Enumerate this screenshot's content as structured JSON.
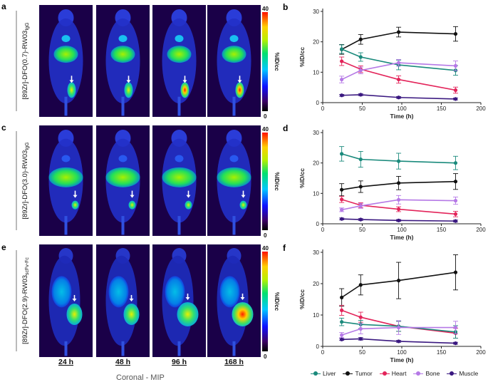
{
  "panels": {
    "a": "a",
    "b": "b",
    "c": "c",
    "d": "d",
    "e": "e",
    "f": "f"
  },
  "rows": [
    {
      "label_main": "[89Zr]-DFO(0.7)-RW03",
      "label_sub": "IgG",
      "tumor_size": "small"
    },
    {
      "label_main": "[89Zr]-DFO(3.0)-RW03",
      "label_sub": "IgG",
      "tumor_size": "small"
    },
    {
      "label_main": "[89Zr]-DFO(2.9)-RW03",
      "label_sub": "scFv-Fc",
      "tumor_size": "large"
    }
  ],
  "time_labels": [
    "24 h",
    "48 h",
    "96 h",
    "168 h"
  ],
  "colorbar": {
    "max": "40",
    "min": "0",
    "unit": "%ID/cc"
  },
  "footer": "Coronal - MIP",
  "colors": {
    "Liver": "#1a8a7c",
    "Tumor": "#111111",
    "Heart": "#e3245a",
    "Bone": "#b579e6",
    "Muscle": "#3a1880"
  },
  "legend": [
    "Liver",
    "Tumor",
    "Heart",
    "Bone",
    "Muscle"
  ],
  "chart_data": [
    {
      "type": "line",
      "panel": "b",
      "x": [
        24,
        48,
        96,
        168
      ],
      "xlabel": "Time (h)",
      "ylabel": "%ID/cc",
      "xlim": [
        0,
        200
      ],
      "ylim": [
        0,
        30
      ],
      "xticks": [
        0,
        50,
        100,
        150,
        200
      ],
      "yticks": [
        0,
        10,
        20,
        30
      ],
      "series": [
        {
          "name": "Tumor",
          "values": [
            17.5,
            20.8,
            23.2,
            22.6
          ],
          "err": [
            1.6,
            1.6,
            1.6,
            2.4
          ]
        },
        {
          "name": "Liver",
          "values": [
            17.6,
            15.0,
            12.4,
            10.6
          ],
          "err": [
            1.4,
            1.4,
            1.6,
            1.6
          ]
        },
        {
          "name": "Heart",
          "values": [
            13.6,
            11.0,
            7.6,
            4.1
          ],
          "err": [
            1.4,
            1.1,
            1.2,
            1.0
          ]
        },
        {
          "name": "Bone",
          "values": [
            7.6,
            10.6,
            13.1,
            12.1
          ],
          "err": [
            1.1,
            1.1,
            1.1,
            1.6
          ]
        },
        {
          "name": "Muscle",
          "values": [
            2.4,
            2.6,
            1.7,
            1.2
          ],
          "err": [
            0.3,
            0.3,
            0.3,
            0.3
          ]
        }
      ]
    },
    {
      "type": "line",
      "panel": "d",
      "x": [
        24,
        48,
        96,
        168
      ],
      "xlabel": "Time (h)",
      "ylabel": "%ID/cc",
      "xlim": [
        0,
        200
      ],
      "ylim": [
        0,
        30
      ],
      "xticks": [
        0,
        50,
        100,
        150,
        200
      ],
      "yticks": [
        0,
        10,
        20,
        30
      ],
      "series": [
        {
          "name": "Liver",
          "values": [
            23.0,
            21.2,
            20.6,
            20.0
          ],
          "err": [
            2.4,
            2.6,
            2.6,
            2.2
          ]
        },
        {
          "name": "Tumor",
          "values": [
            11.2,
            12.2,
            13.4,
            13.9
          ],
          "err": [
            2.0,
            1.9,
            2.2,
            2.6
          ]
        },
        {
          "name": "Heart",
          "values": [
            8.0,
            6.1,
            4.8,
            3.2
          ],
          "err": [
            1.0,
            0.8,
            0.8,
            0.9
          ]
        },
        {
          "name": "Bone",
          "values": [
            4.6,
            5.9,
            7.9,
            7.6
          ],
          "err": [
            0.6,
            0.8,
            1.4,
            1.2
          ]
        },
        {
          "name": "Muscle",
          "values": [
            1.6,
            1.4,
            1.1,
            0.9
          ],
          "err": [
            0.3,
            0.3,
            0.3,
            0.3
          ]
        }
      ]
    },
    {
      "type": "line",
      "panel": "f",
      "x": [
        24,
        48,
        96,
        168
      ],
      "xlabel": "Time (h)",
      "ylabel": "%ID/cc",
      "xlim": [
        0,
        200
      ],
      "ylim": [
        0,
        30
      ],
      "xticks": [
        0,
        50,
        100,
        150,
        200
      ],
      "yticks": [
        0,
        10,
        20,
        30
      ],
      "series": [
        {
          "name": "Tumor",
          "values": [
            15.6,
            19.6,
            21.0,
            23.6
          ],
          "err": [
            2.8,
            3.2,
            5.8,
            5.6
          ]
        },
        {
          "name": "Heart",
          "values": [
            11.5,
            9.3,
            6.4,
            4.2
          ],
          "err": [
            1.6,
            1.6,
            1.6,
            1.6
          ]
        },
        {
          "name": "Liver",
          "values": [
            7.8,
            7.0,
            6.4,
            4.6
          ],
          "err": [
            1.2,
            1.3,
            1.6,
            2.0
          ]
        },
        {
          "name": "Bone",
          "values": [
            3.6,
            5.6,
            6.0,
            6.0
          ],
          "err": [
            0.8,
            1.6,
            2.2,
            2.0
          ]
        },
        {
          "name": "Muscle",
          "values": [
            2.2,
            2.4,
            1.6,
            1.0
          ],
          "err": [
            0.3,
            0.4,
            0.3,
            0.3
          ]
        }
      ]
    }
  ]
}
